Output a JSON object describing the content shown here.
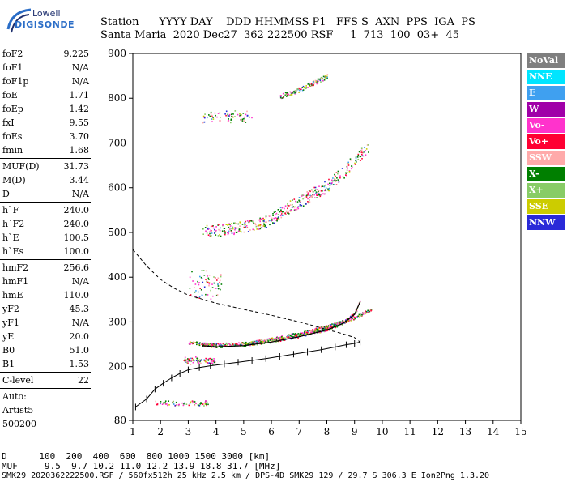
{
  "logo": {
    "line1": "Lowell",
    "line2": "DIGISONDE"
  },
  "header": {
    "line1": "Station      YYYY DAY    DDD HHMMSS P1   FFS S  AXN  PPS  IGA  PS",
    "line2": "Santa Maria  2020 Dec27  362 222500 RSF     1  713  100  03+  45"
  },
  "params": {
    "group1": [
      {
        "name": "foF2",
        "value": "9.225"
      },
      {
        "name": "foF1",
        "value": "N/A"
      },
      {
        "name": "foF1p",
        "value": "N/A"
      },
      {
        "name": "foE",
        "value": "1.71"
      },
      {
        "name": "foEp",
        "value": "1.42"
      },
      {
        "name": "fxI",
        "value": "9.55"
      },
      {
        "name": "foEs",
        "value": "3.70"
      },
      {
        "name": "fmin",
        "value": "1.68"
      }
    ],
    "group2": [
      {
        "name": "MUF(D)",
        "value": "31.73"
      },
      {
        "name": "M(D)",
        "value": "3.44"
      },
      {
        "name": "D",
        "value": "N/A"
      }
    ],
    "group3": [
      {
        "name": "h`F",
        "value": "240.0"
      },
      {
        "name": "h`F2",
        "value": "240.0"
      },
      {
        "name": "h`E",
        "value": "100.5"
      },
      {
        "name": "h`Es",
        "value": "100.0"
      }
    ],
    "group4": [
      {
        "name": "hmF2",
        "value": "256.6"
      },
      {
        "name": "hmF1",
        "value": "N/A"
      },
      {
        "name": "hmE",
        "value": "110.0"
      },
      {
        "name": "yF2",
        "value": "45.3"
      },
      {
        "name": "yF1",
        "value": "N/A"
      },
      {
        "name": "yE",
        "value": "20.0"
      },
      {
        "name": "B0",
        "value": "51.0"
      },
      {
        "name": "B1",
        "value": "1.53"
      }
    ],
    "group5": [
      {
        "name": "C-level",
        "value": "22"
      }
    ],
    "autoscaling": [
      "Auto:",
      "Artist5",
      "500200"
    ]
  },
  "legend": [
    {
      "label": "NoVal",
      "color": "#7f7f7f"
    },
    {
      "label": "NNE",
      "color": "#00e5ff"
    },
    {
      "label": "E",
      "color": "#3fa0f0"
    },
    {
      "label": "W",
      "color": "#a000a8"
    },
    {
      "label": "Vo-",
      "color": "#ff33cc"
    },
    {
      "label": "Vo+",
      "color": "#ff0033"
    },
    {
      "label": "SSW",
      "color": "#ffaaaa"
    },
    {
      "label": "X-",
      "color": "#007f00"
    },
    {
      "label": "X+",
      "color": "#88cc66"
    },
    {
      "label": "SSE",
      "color": "#cccc00"
    },
    {
      "label": "NNW",
      "color": "#2a2ad8"
    }
  ],
  "footer": {
    "line1": "D      100  200  400  600  800 1000 1500 3000 [km]",
    "line2": "MUF     9.5  9.7 10.2 11.0 12.2 13.9 18.8 31.7 [MHz]",
    "line3": "SMK29_2020362222500.RSF / 560fx512h 25 kHz 2.5 km / DPS-4D SMK29 129 / 29.7 S 306.3 E Ion2Png 1.3.20"
  },
  "chart_data": {
    "type": "scatter",
    "xlim": [
      1,
      15
    ],
    "ylim": [
      80,
      900
    ],
    "x_ticks": [
      1,
      2,
      3,
      4,
      5,
      6,
      7,
      8,
      9,
      10,
      11,
      12,
      13,
      14,
      15
    ],
    "y_ticks": [
      80,
      200,
      300,
      400,
      500,
      600,
      700,
      800,
      900
    ],
    "grid": false,
    "traces": [
      {
        "name": "O-trace F2",
        "x": [
          3.5,
          4,
          5,
          6,
          7,
          8,
          8.6,
          9,
          9.2
        ],
        "y": [
          250,
          247,
          250,
          258,
          270,
          285,
          300,
          320,
          348
        ]
      },
      {
        "name": "X-trace F2",
        "x": [
          3,
          3.5,
          4,
          5,
          6,
          7,
          8,
          9,
          9.6
        ],
        "y": [
          255,
          252,
          250,
          252,
          262,
          275,
          290,
          310,
          330
        ]
      },
      {
        "name": "2F layer",
        "x": [
          3.5,
          4,
          5,
          6,
          6.3,
          7,
          8,
          8.6,
          9,
          9.5
        ],
        "y": [
          505,
          505,
          512,
          528,
          545,
          570,
          605,
          635,
          665,
          690
        ]
      },
      {
        "name": "3F layer",
        "x": [
          6.3,
          7,
          8
        ],
        "y": [
          805,
          820,
          850
        ]
      }
    ],
    "es_echoes": [
      {
        "x": [
          1.8,
          3.7
        ],
        "y": [
          120,
          120
        ]
      },
      {
        "x": [
          2.8,
          4.0
        ],
        "y": [
          210,
          218
        ]
      },
      {
        "x": [
          3.0,
          4.2
        ],
        "y": [
          355,
          415
        ]
      },
      {
        "x": [
          3.5,
          5.3
        ],
        "y": [
          750,
          770
        ]
      }
    ],
    "profile_dashed": {
      "x": [
        1.0,
        1.5,
        2.0,
        2.5,
        3,
        4,
        5,
        6,
        7,
        7.5,
        8,
        8.5,
        9,
        9.2
      ],
      "y": [
        462,
        425,
        395,
        375,
        360,
        342,
        328,
        315,
        300,
        292,
        283,
        275,
        265,
        255
      ]
    },
    "true_height_profile": {
      "x": [
        1.1,
        1.5,
        1.8,
        2.1,
        2.4,
        2.7,
        3.0,
        3.4,
        3.8,
        4.3,
        4.8,
        5.3,
        5.8,
        6.3,
        6.8,
        7.3,
        7.8,
        8.3,
        8.7,
        9.0,
        9.2
      ],
      "y": [
        110,
        128,
        150,
        163,
        175,
        185,
        193,
        198,
        202,
        206,
        210,
        214,
        218,
        223,
        228,
        233,
        238,
        244,
        249,
        252,
        255
      ]
    }
  }
}
